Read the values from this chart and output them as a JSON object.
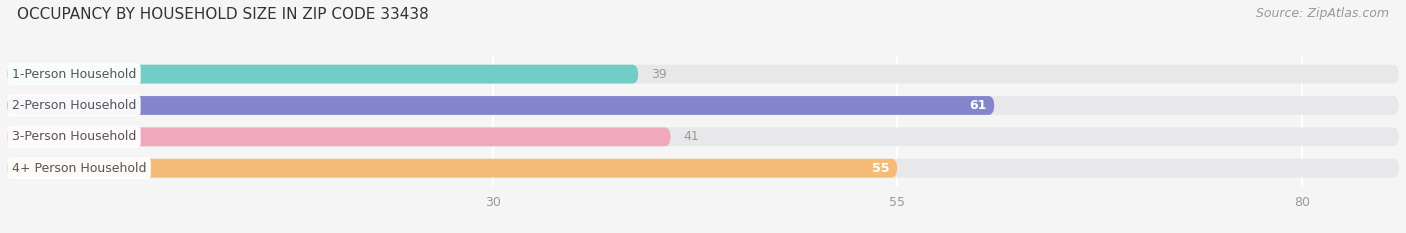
{
  "title": "OCCUPANCY BY HOUSEHOLD SIZE IN ZIP CODE 33438",
  "source": "Source: ZipAtlas.com",
  "categories": [
    "1-Person Household",
    "2-Person Household",
    "3-Person Household",
    "4+ Person Household"
  ],
  "values": [
    39,
    61,
    41,
    55
  ],
  "bar_colors": [
    "#72cdc8",
    "#8585cc",
    "#f0a8bc",
    "#f5bc78"
  ],
  "xticks": [
    30,
    55,
    80
  ],
  "xlim": [
    0,
    86
  ],
  "title_fontsize": 11,
  "source_fontsize": 9,
  "bar_label_fontsize": 9,
  "value_fontsize": 9,
  "xtick_fontsize": 9,
  "bar_height": 0.6,
  "background_color": "#f5f5f5",
  "bar_bg_color": "#e8e8ea",
  "grid_color": "#ffffff",
  "label_color": "#555555",
  "value_inside_color": "#ffffff",
  "value_outside_color": "#999999"
}
